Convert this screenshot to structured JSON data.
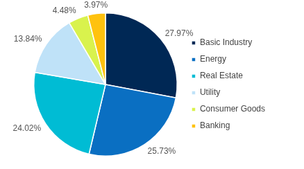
{
  "chart_data": {
    "type": "pie",
    "categories": [
      "Basic Industry",
      "Energy",
      "Real Estate",
      "Utility",
      "Consumer Goods",
      "Banking"
    ],
    "values": [
      27.97,
      25.73,
      24.02,
      13.84,
      4.48,
      3.97
    ],
    "value_labels": [
      "27.97%",
      "25.73%",
      "24.02%",
      "13.84%",
      "4.48%",
      "3.97%"
    ],
    "colors": [
      "#002855",
      "#0a6fc2",
      "#00bcd4",
      "#bfe2f8",
      "#d9f24d",
      "#ffc20e"
    ],
    "legend": "right",
    "data_labels": true
  }
}
